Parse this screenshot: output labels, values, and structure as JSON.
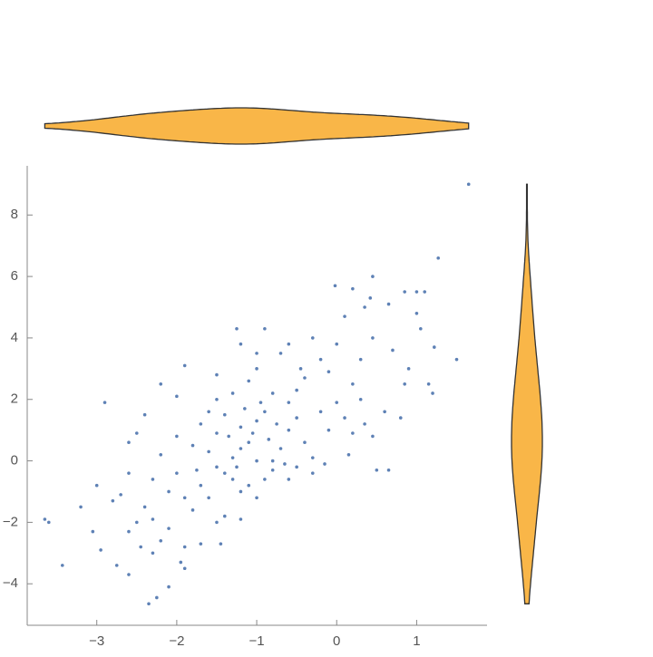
{
  "chart_data": {
    "type": "scatter",
    "x": [
      1.65,
      1.27,
      0.45,
      0.2,
      -0.02,
      0.42,
      0.85,
      1.0,
      1.1,
      0.65,
      1.0,
      0.35,
      0.1,
      1.05,
      1.22,
      1.5,
      1.15,
      1.2,
      0.85,
      0.6,
      0.8,
      0.45,
      0.5,
      0.65,
      0.15,
      -0.15,
      -0.6,
      -0.6,
      -0.3,
      0.0,
      0.3,
      0.45,
      0.7,
      0.9,
      -0.1,
      0.2,
      -0.4,
      -0.7,
      -1.0,
      -1.2,
      -1.25,
      -0.9,
      -1.0,
      -0.8,
      -1.1,
      -1.3,
      -1.5,
      -1.7,
      -1.9,
      -2.2,
      -2.0,
      -2.4,
      -2.5,
      -2.6,
      -2.9,
      -2.6,
      -2.7,
      -2.8,
      -3.0,
      -3.2,
      -3.05,
      -2.95,
      -2.75,
      -2.6,
      -2.1,
      -2.3,
      -1.95,
      -1.9,
      -1.9,
      -2.1,
      -2.3,
      -2.5,
      -1.7,
      -1.5,
      -1.4,
      -1.2,
      -1.2,
      -1.3,
      -1.5,
      -1.7,
      -1.9,
      -2.0,
      -2.2,
      -2.3,
      -2.0,
      -1.8,
      -1.6,
      -1.5,
      -1.4,
      -1.2,
      -1.1,
      -1.0,
      -0.9,
      -0.8,
      -0.7,
      -0.6,
      -0.5,
      -0.4,
      -0.3,
      -0.2,
      0.0,
      0.1,
      0.3,
      -0.1,
      -0.5,
      -0.6,
      -0.9,
      -1.0,
      -1.05,
      -1.2,
      -1.3,
      -1.4,
      -1.1,
      -0.95,
      -1.15,
      -0.75,
      -0.85,
      -1.35,
      -1.6,
      -1.75,
      -2.1,
      -2.4,
      -2.6,
      -2.45,
      -2.2,
      -1.0,
      -0.5,
      -0.3,
      0.2,
      0.35,
      -0.2,
      -0.45,
      -1.5,
      -1.6,
      -1.8,
      -1.45,
      -3.65,
      -3.6,
      -3.43,
      -2.35,
      -2.25,
      -0.8,
      -1.25,
      -0.65
    ],
    "values": [
      9.0,
      6.6,
      6.0,
      5.6,
      5.7,
      5.3,
      5.5,
      5.5,
      5.5,
      5.1,
      4.8,
      5.0,
      4.7,
      4.3,
      3.7,
      3.3,
      2.5,
      2.2,
      2.5,
      1.6,
      1.4,
      0.8,
      -0.3,
      -0.3,
      0.2,
      -0.1,
      -0.6,
      3.8,
      4.0,
      3.8,
      3.3,
      4.0,
      3.6,
      3.0,
      2.9,
      2.5,
      2.7,
      3.5,
      3.5,
      3.8,
      4.3,
      4.3,
      3.0,
      2.2,
      2.6,
      2.2,
      2.0,
      1.2,
      3.1,
      2.5,
      2.1,
      1.5,
      0.9,
      0.6,
      1.9,
      -0.4,
      -1.1,
      -1.3,
      -0.8,
      -1.5,
      -2.3,
      -2.9,
      -3.4,
      -3.7,
      -4.1,
      -3.0,
      -3.3,
      -3.5,
      -2.8,
      -2.2,
      -1.9,
      -2.0,
      -2.7,
      -2.0,
      -1.8,
      -1.9,
      -1.0,
      -0.6,
      -0.2,
      -0.8,
      -1.2,
      -0.4,
      0.2,
      -0.6,
      0.8,
      0.5,
      0.3,
      0.9,
      1.5,
      1.1,
      0.6,
      0.0,
      -0.6,
      -0.3,
      0.4,
      1.0,
      1.4,
      0.6,
      0.1,
      1.6,
      1.9,
      1.4,
      2.0,
      1.0,
      2.3,
      1.9,
      1.6,
      1.3,
      0.9,
      0.4,
      0.1,
      -0.4,
      -0.8,
      1.9,
      1.7,
      1.2,
      0.7,
      0.8,
      1.6,
      -0.3,
      -1.0,
      -1.5,
      -2.3,
      -2.8,
      -2.6,
      -1.2,
      -0.2,
      -0.4,
      0.9,
      1.2,
      3.3,
      3.0,
      2.8,
      -1.2,
      -1.6,
      -2.7,
      -1.9,
      -2.0,
      -3.4,
      -4.65,
      -4.45,
      0.0,
      -0.2,
      -0.1
    ],
    "color": "#5e81b5",
    "violin_color": "#f9b648",
    "xlim": [
      -3.87,
      1.88
    ],
    "ylim": [
      -5.35,
      9.6
    ],
    "xticks": [
      {
        "value": -3,
        "label": "−3"
      },
      {
        "value": -2,
        "label": "−2"
      },
      {
        "value": -1,
        "label": "−1"
      },
      0,
      1
    ],
    "yticks": [
      {
        "value": -4,
        "label": "−4"
      },
      {
        "value": -2,
        "label": "−2"
      },
      0,
      2,
      4,
      6,
      8
    ]
  }
}
